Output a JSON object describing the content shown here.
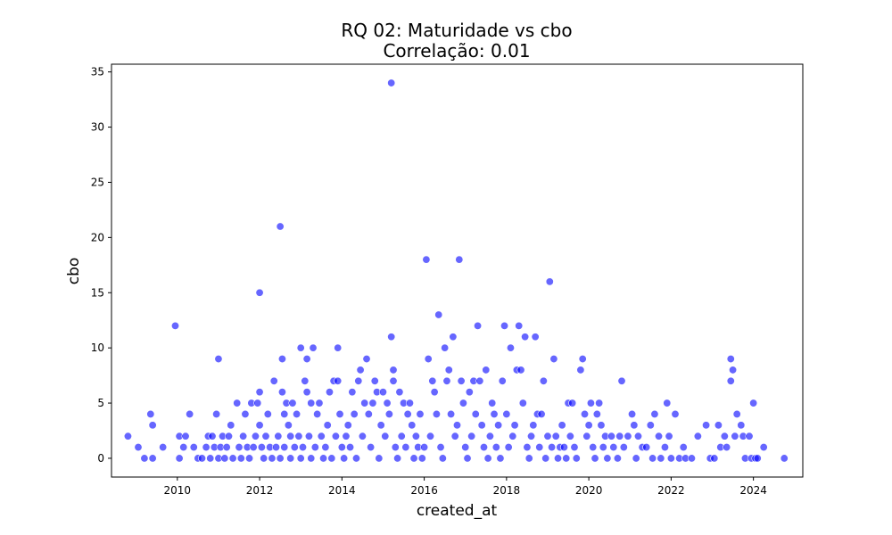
{
  "chart_data": {
    "type": "scatter",
    "title": "RQ 02: Maturidade vs cbo",
    "subtitle": "Correlação: 0.01",
    "xlabel": "created_at",
    "ylabel": "cbo",
    "xlim": [
      2008.4,
      2025.2
    ],
    "ylim": [
      -1.7,
      35.7
    ],
    "xticks": [
      2010,
      2012,
      2014,
      2016,
      2018,
      2020,
      2022,
      2024
    ],
    "yticks": [
      0,
      5,
      10,
      15,
      20,
      25,
      30,
      35
    ],
    "xtick_labels": [
      "2010",
      "2012",
      "2014",
      "2016",
      "2018",
      "2020",
      "2022",
      "2024"
    ],
    "ytick_labels": [
      "0",
      "5",
      "10",
      "15",
      "20",
      "25",
      "30",
      "35"
    ],
    "grid": false,
    "marker_color": "#0000ff",
    "marker_alpha": 0.6,
    "series": [
      {
        "points": [
          [
            2008.8,
            2
          ],
          [
            2009.05,
            1
          ],
          [
            2009.2,
            0
          ],
          [
            2009.35,
            4
          ],
          [
            2009.4,
            3
          ],
          [
            2009.4,
            0
          ],
          [
            2009.65,
            1
          ],
          [
            2009.95,
            12
          ],
          [
            2010.05,
            0
          ],
          [
            2010.05,
            2
          ],
          [
            2010.15,
            1
          ],
          [
            2010.2,
            2
          ],
          [
            2010.3,
            4
          ],
          [
            2010.4,
            1
          ],
          [
            2010.5,
            0
          ],
          [
            2010.6,
            0
          ],
          [
            2010.7,
            1
          ],
          [
            2010.75,
            2
          ],
          [
            2010.8,
            0
          ],
          [
            2010.85,
            2
          ],
          [
            2010.9,
            1
          ],
          [
            2010.95,
            4
          ],
          [
            2011.0,
            9
          ],
          [
            2011.0,
            0
          ],
          [
            2011.05,
            1
          ],
          [
            2011.1,
            2
          ],
          [
            2011.15,
            0
          ],
          [
            2011.2,
            1
          ],
          [
            2011.25,
            2
          ],
          [
            2011.3,
            3
          ],
          [
            2011.35,
            0
          ],
          [
            2011.45,
            5
          ],
          [
            2011.5,
            1
          ],
          [
            2011.55,
            0
          ],
          [
            2011.6,
            2
          ],
          [
            2011.65,
            4
          ],
          [
            2011.7,
            1
          ],
          [
            2011.75,
            0
          ],
          [
            2011.8,
            5
          ],
          [
            2011.85,
            1
          ],
          [
            2011.9,
            2
          ],
          [
            2011.95,
            5
          ],
          [
            2012.0,
            3
          ],
          [
            2012.0,
            6
          ],
          [
            2012.05,
            1
          ],
          [
            2012.0,
            15
          ],
          [
            2012.1,
            0
          ],
          [
            2012.15,
            2
          ],
          [
            2012.2,
            4
          ],
          [
            2012.25,
            1
          ],
          [
            2012.3,
            0
          ],
          [
            2012.35,
            7
          ],
          [
            2012.4,
            1
          ],
          [
            2012.45,
            2
          ],
          [
            2012.5,
            0
          ],
          [
            2012.5,
            21
          ],
          [
            2012.55,
            9
          ],
          [
            2012.55,
            6
          ],
          [
            2012.6,
            4
          ],
          [
            2012.6,
            1
          ],
          [
            2012.65,
            5
          ],
          [
            2012.7,
            3
          ],
          [
            2012.75,
            2
          ],
          [
            2012.75,
            0
          ],
          [
            2012.8,
            5
          ],
          [
            2012.85,
            1
          ],
          [
            2012.9,
            4
          ],
          [
            2012.95,
            2
          ],
          [
            2013.0,
            0
          ],
          [
            2013.0,
            10
          ],
          [
            2013.05,
            1
          ],
          [
            2013.1,
            7
          ],
          [
            2013.15,
            9
          ],
          [
            2013.15,
            6
          ],
          [
            2013.2,
            2
          ],
          [
            2013.25,
            5
          ],
          [
            2013.25,
            0
          ],
          [
            2013.3,
            10
          ],
          [
            2013.35,
            1
          ],
          [
            2013.4,
            4
          ],
          [
            2013.45,
            5
          ],
          [
            2013.5,
            2
          ],
          [
            2013.55,
            0
          ],
          [
            2013.6,
            1
          ],
          [
            2013.65,
            3
          ],
          [
            2013.7,
            6
          ],
          [
            2013.75,
            0
          ],
          [
            2013.8,
            7
          ],
          [
            2013.85,
            2
          ],
          [
            2013.9,
            10
          ],
          [
            2013.9,
            7
          ],
          [
            2013.95,
            4
          ],
          [
            2014.0,
            1
          ],
          [
            2014.05,
            0
          ],
          [
            2014.1,
            2
          ],
          [
            2014.15,
            3
          ],
          [
            2014.2,
            1
          ],
          [
            2014.25,
            6
          ],
          [
            2014.3,
            4
          ],
          [
            2014.35,
            0
          ],
          [
            2014.4,
            7
          ],
          [
            2014.45,
            8
          ],
          [
            2014.5,
            2
          ],
          [
            2014.55,
            5
          ],
          [
            2014.6,
            9
          ],
          [
            2014.65,
            4
          ],
          [
            2014.7,
            1
          ],
          [
            2014.75,
            5
          ],
          [
            2014.8,
            7
          ],
          [
            2014.85,
            6
          ],
          [
            2014.9,
            0
          ],
          [
            2014.95,
            3
          ],
          [
            2015.0,
            6
          ],
          [
            2015.05,
            2
          ],
          [
            2015.1,
            5
          ],
          [
            2015.15,
            4
          ],
          [
            2015.2,
            34
          ],
          [
            2015.2,
            11
          ],
          [
            2015.25,
            8
          ],
          [
            2015.25,
            7
          ],
          [
            2015.3,
            1
          ],
          [
            2015.35,
            0
          ],
          [
            2015.4,
            6
          ],
          [
            2015.45,
            2
          ],
          [
            2015.5,
            5
          ],
          [
            2015.55,
            1
          ],
          [
            2015.6,
            4
          ],
          [
            2015.65,
            5
          ],
          [
            2015.7,
            3
          ],
          [
            2015.75,
            0
          ],
          [
            2015.8,
            2
          ],
          [
            2015.85,
            1
          ],
          [
            2015.9,
            4
          ],
          [
            2015.95,
            0
          ],
          [
            2016.0,
            1
          ],
          [
            2016.05,
            18
          ],
          [
            2016.1,
            9
          ],
          [
            2016.15,
            2
          ],
          [
            2016.2,
            7
          ],
          [
            2016.25,
            6
          ],
          [
            2016.3,
            4
          ],
          [
            2016.35,
            13
          ],
          [
            2016.4,
            1
          ],
          [
            2016.45,
            0
          ],
          [
            2016.5,
            10
          ],
          [
            2016.55,
            7
          ],
          [
            2016.6,
            8
          ],
          [
            2016.65,
            4
          ],
          [
            2016.7,
            11
          ],
          [
            2016.75,
            2
          ],
          [
            2016.8,
            3
          ],
          [
            2016.85,
            18
          ],
          [
            2016.9,
            7
          ],
          [
            2016.95,
            5
          ],
          [
            2017.0,
            1
          ],
          [
            2017.05,
            0
          ],
          [
            2017.1,
            6
          ],
          [
            2017.15,
            2
          ],
          [
            2017.2,
            7
          ],
          [
            2017.25,
            4
          ],
          [
            2017.3,
            12
          ],
          [
            2017.35,
            7
          ],
          [
            2017.4,
            3
          ],
          [
            2017.45,
            1
          ],
          [
            2017.5,
            8
          ],
          [
            2017.55,
            0
          ],
          [
            2017.6,
            2
          ],
          [
            2017.65,
            5
          ],
          [
            2017.7,
            4
          ],
          [
            2017.75,
            1
          ],
          [
            2017.8,
            3
          ],
          [
            2017.85,
            0
          ],
          [
            2017.9,
            7
          ],
          [
            2017.95,
            12
          ],
          [
            2018.0,
            4
          ],
          [
            2018.05,
            1
          ],
          [
            2018.1,
            10
          ],
          [
            2018.15,
            2
          ],
          [
            2018.2,
            3
          ],
          [
            2018.25,
            8
          ],
          [
            2018.3,
            12
          ],
          [
            2018.35,
            8
          ],
          [
            2018.4,
            5
          ],
          [
            2018.45,
            11
          ],
          [
            2018.5,
            1
          ],
          [
            2018.55,
            0
          ],
          [
            2018.6,
            2
          ],
          [
            2018.65,
            3
          ],
          [
            2018.7,
            11
          ],
          [
            2018.75,
            4
          ],
          [
            2018.8,
            1
          ],
          [
            2018.85,
            4
          ],
          [
            2018.9,
            7
          ],
          [
            2018.95,
            0
          ],
          [
            2019.0,
            2
          ],
          [
            2019.05,
            16
          ],
          [
            2019.1,
            1
          ],
          [
            2019.15,
            9
          ],
          [
            2019.2,
            2
          ],
          [
            2019.25,
            0
          ],
          [
            2019.3,
            1
          ],
          [
            2019.35,
            3
          ],
          [
            2019.4,
            1
          ],
          [
            2019.45,
            0
          ],
          [
            2019.5,
            5
          ],
          [
            2019.55,
            2
          ],
          [
            2019.6,
            5
          ],
          [
            2019.65,
            1
          ],
          [
            2019.7,
            0
          ],
          [
            2019.8,
            8
          ],
          [
            2019.85,
            9
          ],
          [
            2019.9,
            4
          ],
          [
            2019.95,
            2
          ],
          [
            2020.0,
            3
          ],
          [
            2020.05,
            5
          ],
          [
            2020.1,
            1
          ],
          [
            2020.15,
            0
          ],
          [
            2020.2,
            4
          ],
          [
            2020.25,
            5
          ],
          [
            2020.3,
            3
          ],
          [
            2020.35,
            1
          ],
          [
            2020.4,
            2
          ],
          [
            2020.45,
            0
          ],
          [
            2020.55,
            2
          ],
          [
            2020.6,
            1
          ],
          [
            2020.7,
            0
          ],
          [
            2020.75,
            2
          ],
          [
            2020.8,
            7
          ],
          [
            2020.85,
            1
          ],
          [
            2020.95,
            2
          ],
          [
            2021.05,
            4
          ],
          [
            2021.1,
            3
          ],
          [
            2021.15,
            0
          ],
          [
            2021.2,
            2
          ],
          [
            2021.3,
            1
          ],
          [
            2021.4,
            1
          ],
          [
            2021.5,
            3
          ],
          [
            2021.55,
            0
          ],
          [
            2021.6,
            4
          ],
          [
            2021.7,
            2
          ],
          [
            2021.75,
            0
          ],
          [
            2021.85,
            1
          ],
          [
            2021.9,
            5
          ],
          [
            2021.95,
            2
          ],
          [
            2022.0,
            0
          ],
          [
            2022.1,
            4
          ],
          [
            2022.2,
            0
          ],
          [
            2022.3,
            1
          ],
          [
            2022.35,
            0
          ],
          [
            2022.5,
            0
          ],
          [
            2022.65,
            2
          ],
          [
            2022.85,
            3
          ],
          [
            2022.95,
            0
          ],
          [
            2023.05,
            0
          ],
          [
            2023.15,
            3
          ],
          [
            2023.2,
            1
          ],
          [
            2023.3,
            2
          ],
          [
            2023.35,
            1
          ],
          [
            2023.45,
            9
          ],
          [
            2023.45,
            7
          ],
          [
            2023.5,
            8
          ],
          [
            2023.55,
            2
          ],
          [
            2023.6,
            4
          ],
          [
            2023.7,
            3
          ],
          [
            2023.75,
            2
          ],
          [
            2023.8,
            0
          ],
          [
            2023.9,
            2
          ],
          [
            2023.95,
            0
          ],
          [
            2024.0,
            5
          ],
          [
            2024.05,
            0
          ],
          [
            2024.1,
            0
          ],
          [
            2024.25,
            1
          ],
          [
            2024.75,
            0
          ]
        ]
      }
    ]
  }
}
